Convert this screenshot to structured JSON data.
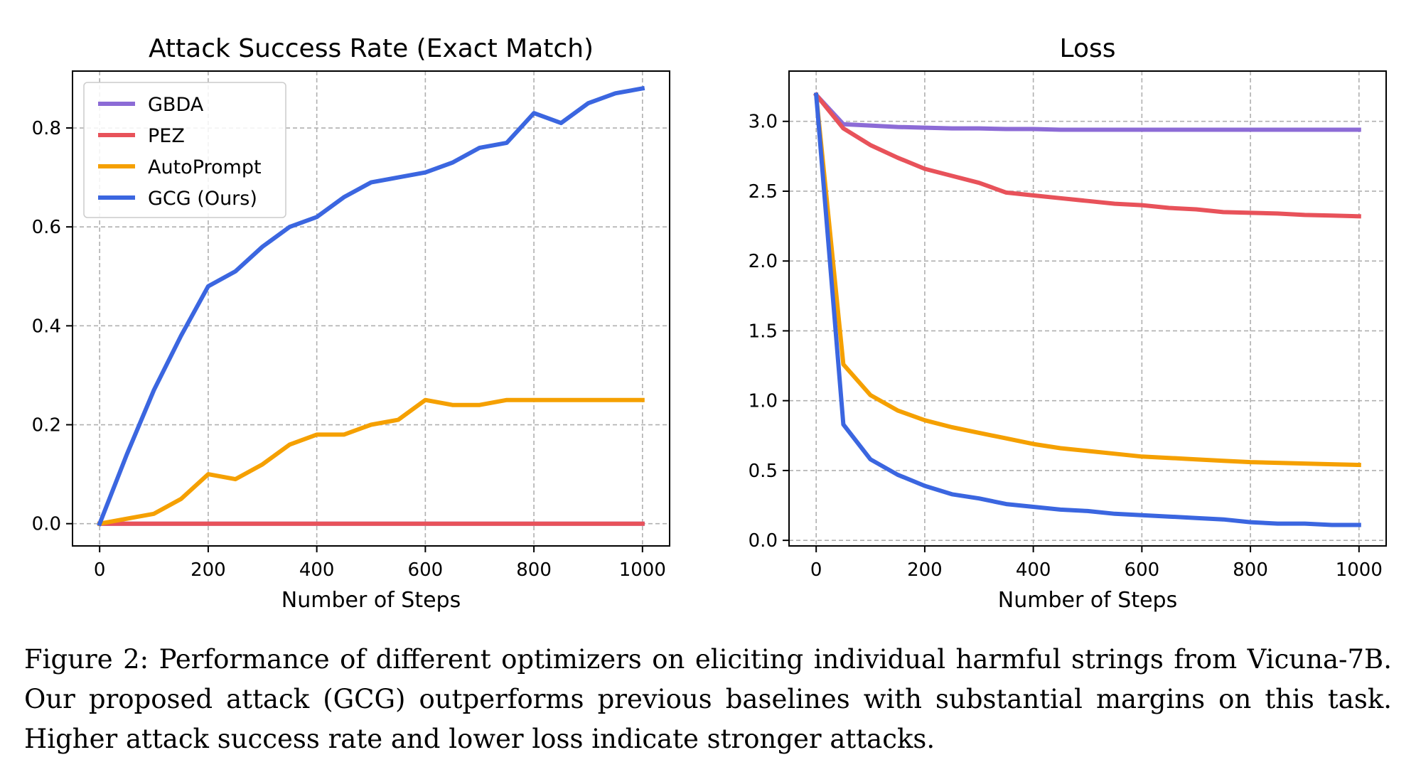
{
  "chart_data": [
    {
      "type": "line",
      "title": "Attack Success Rate (Exact Match)",
      "xlabel": "Number of Steps",
      "ylabel": "",
      "xlim": [
        -50,
        1050
      ],
      "ylim": [
        -0.045,
        0.915
      ],
      "xticks": [
        0,
        200,
        400,
        600,
        800,
        1000
      ],
      "yticks": [
        0.0,
        0.2,
        0.4,
        0.6,
        0.8
      ],
      "ytick_format": 1,
      "grid": true,
      "legend_position": "upper-left",
      "series": [
        {
          "name": "GBDA",
          "color": "#8c6bd6",
          "x": [
            0,
            50,
            100,
            150,
            200,
            250,
            300,
            350,
            400,
            450,
            500,
            550,
            600,
            650,
            700,
            750,
            800,
            850,
            900,
            950,
            1000
          ],
          "y": [
            0,
            0,
            0,
            0,
            0,
            0,
            0,
            0,
            0,
            0,
            0,
            0,
            0,
            0,
            0,
            0,
            0,
            0,
            0,
            0,
            0
          ]
        },
        {
          "name": "PEZ",
          "color": "#e8525a",
          "x": [
            0,
            50,
            100,
            150,
            200,
            250,
            300,
            350,
            400,
            450,
            500,
            550,
            600,
            650,
            700,
            750,
            800,
            850,
            900,
            950,
            1000
          ],
          "y": [
            0,
            0,
            0,
            0,
            0,
            0,
            0,
            0,
            0,
            0,
            0,
            0,
            0,
            0,
            0,
            0,
            0,
            0,
            0,
            0,
            0
          ]
        },
        {
          "name": "AutoPrompt",
          "color": "#f5a000",
          "x": [
            0,
            50,
            100,
            150,
            200,
            250,
            300,
            350,
            400,
            450,
            500,
            550,
            600,
            650,
            700,
            750,
            800,
            850,
            900,
            950,
            1000
          ],
          "y": [
            0,
            0.01,
            0.02,
            0.05,
            0.1,
            0.09,
            0.12,
            0.16,
            0.18,
            0.18,
            0.2,
            0.21,
            0.25,
            0.24,
            0.24,
            0.25,
            0.25,
            0.25,
            0.25,
            0.25,
            0.25
          ]
        },
        {
          "name": "GCG (Ours)",
          "color": "#3b66e0",
          "x": [
            0,
            50,
            100,
            150,
            200,
            250,
            300,
            350,
            400,
            450,
            500,
            550,
            600,
            650,
            700,
            750,
            800,
            850,
            900,
            950,
            1000
          ],
          "y": [
            0,
            0.14,
            0.27,
            0.38,
            0.48,
            0.51,
            0.56,
            0.6,
            0.62,
            0.66,
            0.69,
            0.7,
            0.71,
            0.73,
            0.76,
            0.77,
            0.83,
            0.81,
            0.85,
            0.87,
            0.88
          ]
        }
      ]
    },
    {
      "type": "line",
      "title": "Loss",
      "xlabel": "Number of Steps",
      "ylabel": "",
      "xlim": [
        -50,
        1050
      ],
      "ylim": [
        -0.04,
        3.36
      ],
      "xticks": [
        0,
        200,
        400,
        600,
        800,
        1000
      ],
      "yticks": [
        0.0,
        0.5,
        1.0,
        1.5,
        2.0,
        2.5,
        3.0
      ],
      "ytick_format": 1,
      "grid": true,
      "legend_position": "none",
      "series": [
        {
          "name": "GBDA",
          "color": "#8c6bd6",
          "x": [
            0,
            50,
            100,
            150,
            200,
            250,
            300,
            350,
            400,
            450,
            500,
            550,
            600,
            650,
            700,
            750,
            800,
            850,
            900,
            950,
            1000
          ],
          "y": [
            3.19,
            2.98,
            2.97,
            2.96,
            2.955,
            2.95,
            2.95,
            2.945,
            2.945,
            2.94,
            2.94,
            2.94,
            2.94,
            2.94,
            2.94,
            2.94,
            2.94,
            2.94,
            2.94,
            2.94,
            2.94
          ]
        },
        {
          "name": "PEZ",
          "color": "#e8525a",
          "x": [
            0,
            50,
            100,
            150,
            200,
            250,
            300,
            350,
            400,
            450,
            500,
            550,
            600,
            650,
            700,
            750,
            800,
            850,
            900,
            950,
            1000
          ],
          "y": [
            3.19,
            2.95,
            2.83,
            2.74,
            2.66,
            2.61,
            2.56,
            2.49,
            2.47,
            2.45,
            2.43,
            2.41,
            2.4,
            2.38,
            2.37,
            2.35,
            2.345,
            2.34,
            2.33,
            2.325,
            2.32
          ]
        },
        {
          "name": "AutoPrompt",
          "color": "#f5a000",
          "x": [
            0,
            50,
            100,
            150,
            200,
            250,
            300,
            350,
            400,
            450,
            500,
            550,
            600,
            650,
            700,
            750,
            800,
            850,
            900,
            950,
            1000
          ],
          "y": [
            3.19,
            1.26,
            1.04,
            0.93,
            0.86,
            0.81,
            0.77,
            0.73,
            0.69,
            0.66,
            0.64,
            0.62,
            0.6,
            0.59,
            0.58,
            0.57,
            0.56,
            0.555,
            0.55,
            0.545,
            0.54
          ]
        },
        {
          "name": "GCG (Ours)",
          "color": "#3b66e0",
          "x": [
            0,
            50,
            100,
            150,
            200,
            250,
            300,
            350,
            400,
            450,
            500,
            550,
            600,
            650,
            700,
            750,
            800,
            850,
            900,
            950,
            1000
          ],
          "y": [
            3.19,
            0.83,
            0.58,
            0.47,
            0.39,
            0.33,
            0.3,
            0.26,
            0.24,
            0.22,
            0.21,
            0.19,
            0.18,
            0.17,
            0.16,
            0.15,
            0.13,
            0.12,
            0.12,
            0.11,
            0.11
          ]
        }
      ]
    }
  ],
  "caption": "Figure 2: Performance of different optimizers on eliciting individual harmful strings from Vicuna-7B. Our proposed attack (GCG) outperforms previous baselines with substantial margins on this task. Higher attack success rate and lower loss indicate stronger attacks."
}
